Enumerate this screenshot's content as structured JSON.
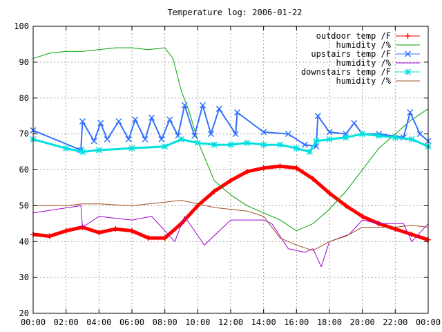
{
  "chart_data": {
    "type": "line",
    "title": "Temperature log: 2006-01-22",
    "xlabel": "",
    "ylabel": "",
    "xlim": [
      "00:00",
      "24:00"
    ],
    "ylim": [
      20,
      100
    ],
    "grid": true,
    "legend_position": "top-right",
    "x_ticks": [
      "00:00",
      "02:00",
      "04:00",
      "06:00",
      "08:00",
      "10:00",
      "12:00",
      "14:00",
      "16:00",
      "18:00",
      "20:00",
      "22:00",
      "00:00"
    ],
    "y_ticks": [
      "20",
      "30",
      "40",
      "50",
      "60",
      "70",
      "80",
      "90",
      "100"
    ],
    "series": [
      {
        "name": "outdoor temp /F",
        "color": "#ff0000",
        "marker": "plus",
        "x_hours": [
          0,
          1,
          2,
          3,
          4,
          5,
          6,
          7,
          8,
          9,
          10,
          11,
          12,
          13,
          14,
          15,
          16,
          17,
          18,
          19,
          20,
          21,
          22,
          23,
          24
        ],
        "values": [
          42,
          41.5,
          43,
          44,
          42.5,
          43.5,
          43,
          41,
          41,
          45,
          50,
          54,
          57,
          59.5,
          60.5,
          61,
          60.5,
          57.5,
          53.5,
          50,
          47,
          45,
          43.5,
          42,
          40.5
        ]
      },
      {
        "name": "humidity /%",
        "color": "#00a000",
        "marker": "none",
        "x_hours": [
          0,
          1,
          2,
          3,
          4,
          5,
          6,
          7,
          8,
          8.5,
          9,
          9.5,
          10,
          11,
          12,
          13,
          14,
          15,
          16,
          17,
          18,
          19,
          20,
          21,
          22,
          23,
          24
        ],
        "values": [
          91,
          92.5,
          93,
          93,
          93.5,
          94,
          94,
          93.5,
          94,
          91,
          82,
          76,
          68,
          57,
          53,
          50,
          48,
          46,
          43,
          45,
          49,
          54,
          60,
          66,
          70,
          74,
          77
        ]
      },
      {
        "name": "upstairs temp /F",
        "color": "#3070ff",
        "marker": "x",
        "x_hours": [
          0,
          2.9,
          3,
          3.7,
          4.1,
          4.5,
          5.2,
          5.8,
          6.2,
          6.8,
          7.2,
          7.8,
          8.3,
          8.8,
          9.2,
          9.8,
          10.3,
          10.8,
          11.3,
          12.3,
          12.4,
          14,
          15.5,
          16.5,
          17.2,
          17.3,
          18,
          19,
          19.5,
          20,
          21,
          22.5,
          22.9,
          23.5,
          24
        ],
        "values": [
          71,
          65.5,
          73.5,
          68,
          73,
          68.5,
          73.5,
          68.5,
          74,
          68.5,
          74.5,
          68.5,
          74,
          69.5,
          78,
          69.5,
          78,
          70,
          77,
          70,
          76,
          70.5,
          70,
          67,
          66.5,
          75,
          70.5,
          70,
          73,
          70,
          70,
          69,
          76,
          70,
          68
        ]
      },
      {
        "name": "humidity /%",
        "color": "#a000d0",
        "marker": "none",
        "x_hours": [
          0,
          2.9,
          3,
          4,
          6,
          7.2,
          8.6,
          9.2,
          10.4,
          12,
          14,
          14.5,
          15.5,
          16.5,
          17,
          17.5,
          18,
          19.2,
          19.6,
          20,
          21,
          22.5,
          23,
          24
        ],
        "values": [
          48,
          50,
          44,
          47,
          46,
          47,
          40,
          47,
          39,
          46,
          46,
          45,
          38,
          37,
          38,
          33,
          40,
          42,
          44,
          46,
          45,
          45,
          40,
          45
        ]
      },
      {
        "name": "downstairs temp /F",
        "color": "#00e0e0",
        "marker": "star",
        "x_hours": [
          0,
          2,
          3,
          4,
          6,
          8,
          9,
          10,
          11,
          12,
          13,
          14,
          15,
          16,
          16.8,
          17.2,
          18,
          19,
          20,
          21,
          22,
          23,
          24
        ],
        "values": [
          68.5,
          66,
          65,
          65.5,
          66,
          66.5,
          68.5,
          67.5,
          67,
          67,
          67.5,
          67,
          67,
          66,
          65,
          68,
          68.5,
          69,
          70,
          69.5,
          69,
          68.5,
          66.5
        ]
      },
      {
        "name": "humidity /%",
        "color": "#a05020",
        "marker": "none",
        "x_hours": [
          0,
          2,
          3,
          4,
          6,
          8,
          9,
          10,
          11,
          12,
          13,
          14,
          15,
          16,
          17,
          18,
          19,
          20,
          21,
          22,
          23,
          24
        ],
        "values": [
          50,
          50,
          50.5,
          50.5,
          50,
          51,
          51.5,
          50.5,
          49.5,
          49,
          48.5,
          47,
          41,
          39,
          37.5,
          40,
          41.5,
          44,
          44,
          44,
          44.5,
          44
        ]
      }
    ]
  }
}
